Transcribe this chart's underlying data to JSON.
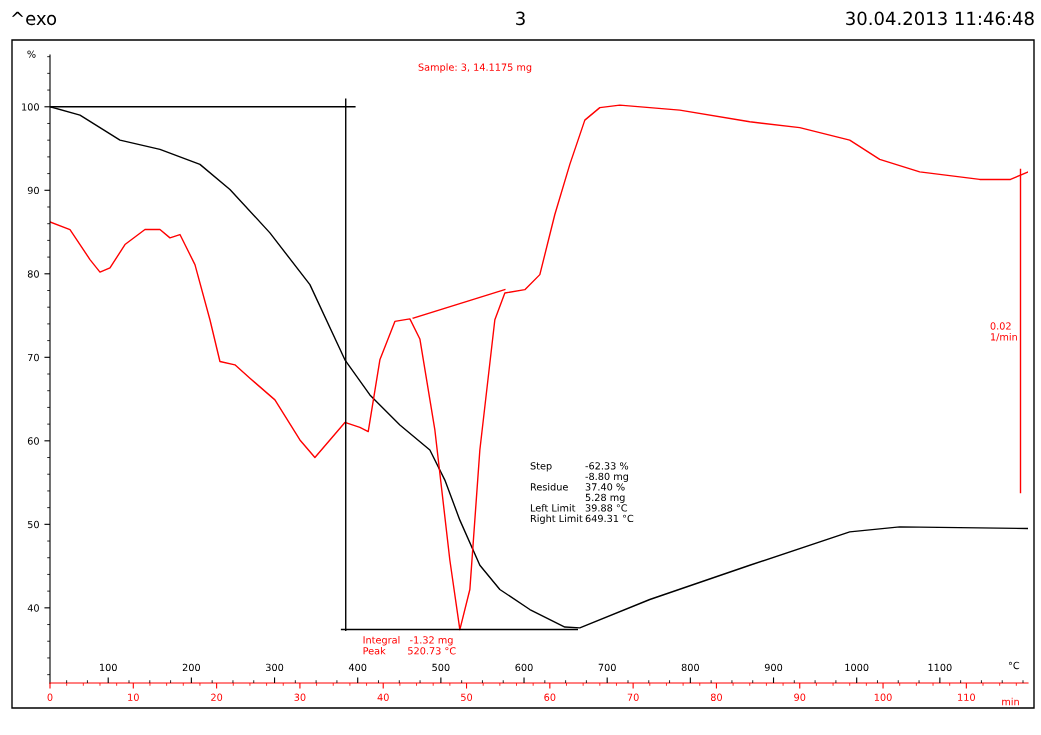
{
  "chart_data": {
    "type": "line",
    "title": "3",
    "subtitle": "Sample: 3, 14.1175 mg",
    "ylabel": "%",
    "xlabel": "min",
    "x2label": "°C",
    "xlim": [
      0,
      117.4
    ],
    "xticks": [
      0,
      10,
      20,
      30,
      40,
      50,
      60,
      70,
      80,
      90,
      100,
      110
    ],
    "x2lim": [
      30,
      1206
    ],
    "x2ticks": [
      100,
      200,
      300,
      400,
      500,
      600,
      700,
      800,
      900,
      1000,
      1100
    ],
    "ylim": [
      31,
      106.2
    ],
    "yticks": [
      40,
      50,
      60,
      70,
      80,
      90,
      100
    ],
    "grid": false,
    "line_style": "solid",
    "marker": "none",
    "series": [
      {
        "color": "#000000",
        "x": [
          0,
          3.6,
          8.4,
          13.2,
          18.0,
          21.6,
          26.4,
          31.2,
          35.4,
          38.4,
          42.0,
          45.6,
          47.4,
          49.2,
          51.6,
          54.0,
          57.6,
          61.8,
          63.6,
          72.0,
          84.0,
          96.0,
          102.0,
          117.4
        ],
        "values": [
          100,
          99.0,
          96.0,
          94.9,
          93.1,
          90.1,
          84.9,
          78.7,
          69.7,
          65.5,
          61.9,
          58.9,
          55.3,
          50.5,
          45.1,
          42.2,
          39.8,
          37.7,
          37.6,
          41.0,
          45.1,
          49.1,
          49.7,
          49.5
        ]
      },
      {
        "color": "#ff0000",
        "x": [
          0,
          2.4,
          4.8,
          6.0,
          7.2,
          9.0,
          11.4,
          13.2,
          14.4,
          15.6,
          17.4,
          19.2,
          20.4,
          22.2,
          24.0,
          27.0,
          30.0,
          31.8,
          33.6,
          35.4,
          37.2,
          38.2,
          39.6,
          41.4,
          43.2,
          44.4,
          46.2,
          48.0,
          49.2,
          50.4,
          51.6,
          53.4,
          54.6,
          57.0,
          58.8,
          60.6,
          62.4,
          64.2,
          66.0,
          68.4,
          75.6,
          84.0,
          90.0,
          96.0,
          99.6,
          104.4,
          111.6,
          115.3,
          117.4
        ],
        "values": [
          86.2,
          85.3,
          81.7,
          80.2,
          80.7,
          83.5,
          85.3,
          85.3,
          84.3,
          84.7,
          81.1,
          74.5,
          69.5,
          69.1,
          67.5,
          64.9,
          60.1,
          58.0,
          60.1,
          62.2,
          61.6,
          61.1,
          69.7,
          74.3,
          74.6,
          72.2,
          61.3,
          45.7,
          37.4,
          42.2,
          58.9,
          74.5,
          77.7,
          78.1,
          79.9,
          87.1,
          93.1,
          98.4,
          99.9,
          100.2,
          99.6,
          98.2,
          97.5,
          96.0,
          93.7,
          92.2,
          91.3,
          91.3,
          92.2
        ]
      },
      {
        "color": "#000000",
        "x": [
          0,
          36.6
        ],
        "values": [
          100,
          100
        ]
      },
      {
        "color": "#000000",
        "x": [
          35.5,
          35.5
        ],
        "values": [
          100.9,
          37.3
        ]
      },
      {
        "color": "#000000",
        "x": [
          35.0,
          63.3
        ],
        "values": [
          37.4,
          37.4
        ]
      },
      {
        "color": "#ff0000",
        "x": [
          43.6,
          54.6
        ],
        "values": [
          74.7,
          78.1
        ]
      },
      {
        "color": "#ff0000",
        "x": [
          116.5,
          116.5
        ],
        "values": [
          92.5,
          53.8
        ]
      }
    ],
    "annotations": [
      "^exo",
      "30.04.2013 11:46:48",
      "Step\n\nResidue\n\nLeft Limit\nRight Limit",
      "-62.33 %\n-8.80 mg\n37.40 %\n5.28 mg\n39.88 °C\n649.31 °C",
      {
        "text": "Integral   -1.32 mg\nPeak       520.73 °C",
        "x": 49.2,
        "y": 37.4
      },
      {
        "text": "0.02\n1/min",
        "x": 116.5,
        "y": 73
      }
    ]
  }
}
